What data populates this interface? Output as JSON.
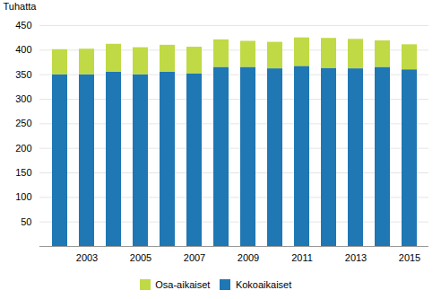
{
  "chart_data": {
    "type": "bar",
    "stacked": true,
    "categories": [
      null,
      "2003",
      null,
      "2005",
      null,
      "2007",
      null,
      "2009",
      null,
      "2011",
      null,
      "2013",
      null,
      "2015"
    ],
    "series": [
      {
        "name": "Kokoaikaiset",
        "color": "#1F77B4",
        "values": [
          350,
          350,
          355,
          350,
          355,
          352,
          365,
          365,
          362,
          367,
          363,
          362,
          365,
          360
        ]
      },
      {
        "name": "Osa-aikaiset",
        "color": "#BFDA45",
        "values": [
          51,
          52,
          57,
          55,
          55,
          54,
          56,
          53,
          54,
          58,
          61,
          60,
          54,
          51
        ]
      }
    ],
    "ylabel": "Tuhatta",
    "ylim": [
      0,
      450
    ],
    "yticks": [
      50,
      100,
      150,
      200,
      250,
      300,
      350,
      400,
      450
    ],
    "grid": true,
    "legend": "bottom"
  }
}
